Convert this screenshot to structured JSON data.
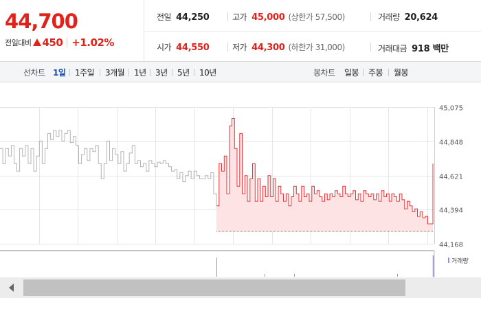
{
  "summary": {
    "current_price": "44,700",
    "change_label": "전일대비",
    "change_direction_icon": "up-triangle-icon",
    "change_amount": "450",
    "change_rate": "+1.02%",
    "prev_close_label": "전일",
    "prev_close": "44,250",
    "high_label": "고가",
    "high": "45,000",
    "upper_limit": "(상한가 57,500)",
    "volume_label": "거래량",
    "volume": "20,624",
    "open_label": "시가",
    "open": "44,550",
    "low_label": "저가",
    "low": "44,300",
    "lower_limit": "(하한가 31,000)",
    "trade_value_label": "거래대금",
    "trade_value": "918 백만"
  },
  "toolbar": {
    "line_chart_label": "선차트",
    "line_periods": [
      "1일",
      "1주일",
      "3개월",
      "1년",
      "3년",
      "5년",
      "10년"
    ],
    "active_period": "1일",
    "candle_chart_label": "봉차트",
    "candle_periods": [
      "일봉",
      "주봉",
      "월봉"
    ]
  },
  "colors": {
    "up": "#e0221b",
    "today_line": "#e8353a",
    "today_fill": "#fde3e4",
    "prev_line": "#b3b3b3",
    "grid": "#e6e6e6",
    "volume_bar": "#9b8fc6"
  },
  "chart_data": {
    "type": "line",
    "y_tick_labels": [
      "45,075",
      "44,848",
      "44,621",
      "44,394",
      "44,168"
    ],
    "y_ticks": [
      45075,
      44848,
      44621,
      44394,
      44168
    ],
    "ylim": [
      44168,
      45075
    ],
    "baseline": 44250,
    "grid": true,
    "series": [
      {
        "values": [
          44800,
          44700,
          44800,
          44750,
          44820,
          44700,
          44650,
          44800,
          44750,
          44820,
          44700,
          44800,
          44650,
          44750,
          44850,
          44700,
          44800,
          44900,
          44860,
          44920,
          44880,
          44920,
          44850,
          44900,
          44920,
          44840,
          44880,
          44820,
          44700,
          44760,
          44800,
          44720,
          44800,
          44780,
          44820,
          44700,
          44600,
          44700,
          44850,
          44720,
          44800,
          44760,
          44700,
          44780,
          44650,
          44700,
          44770,
          44820,
          44700,
          44720,
          44680,
          44700,
          44650,
          44720,
          44700,
          44680,
          44710,
          44700,
          44720,
          44700,
          44680,
          44650,
          44660,
          44600,
          44640,
          44580,
          44620,
          44650,
          44600,
          44650,
          44620,
          44600,
          44600,
          44620,
          44600,
          44640,
          44500,
          44420
        ]
      },
      {
        "values": [
          44420,
          44700,
          44650,
          44750,
          44500,
          44950,
          45000,
          44800,
          44550,
          44900,
          44500,
          44620,
          44450,
          44600,
          44700,
          44450,
          44600,
          44450,
          44550,
          44480,
          44620,
          44480,
          44600,
          44450,
          44550,
          44500,
          44450,
          44500,
          44420,
          44480,
          44550,
          44500,
          44450,
          44550,
          44480,
          44500,
          44450,
          44550,
          44500,
          44520,
          44480,
          44450,
          44500,
          44460,
          44500,
          44480,
          44520,
          44500,
          44480,
          44550,
          44500,
          44480,
          44500,
          44520,
          44460,
          44500,
          44450,
          44520,
          44500,
          44480,
          44500,
          44460,
          44500,
          44450,
          44520,
          44480,
          44500,
          44450,
          44500,
          44480,
          44450,
          44500,
          44460,
          44400,
          44450,
          44420,
          44380,
          44400,
          44350,
          44380,
          44340,
          44350,
          44300,
          44300,
          44700
        ]
      }
    ],
    "volume": {
      "series_name": "거래량",
      "values": [
        1,
        1,
        1,
        1,
        1,
        1,
        1,
        1,
        1,
        1,
        1,
        1,
        1,
        1,
        1
      ]
    }
  }
}
